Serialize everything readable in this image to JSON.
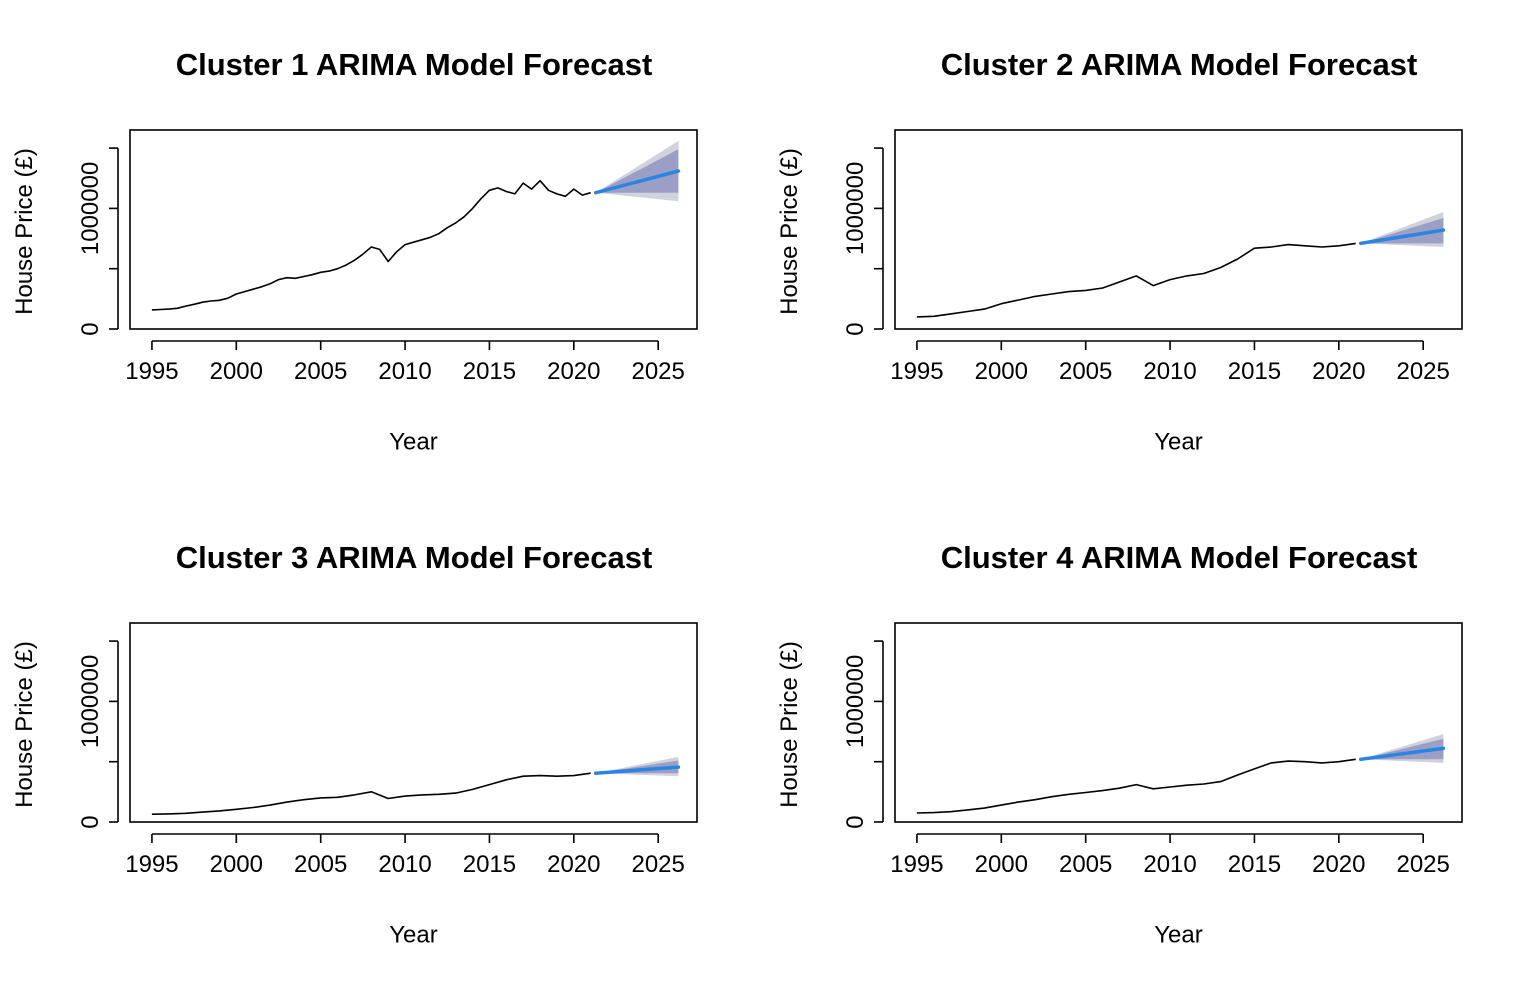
{
  "chart_data": [
    {
      "type": "line",
      "title": "Cluster 1 ARIMA Model Forecast",
      "xlabel": "Year",
      "ylabel": "House Price (£)",
      "xlim": [
        1993.7,
        2027.3
      ],
      "ylim": [
        0,
        1650000
      ],
      "xticks": [
        "1995",
        "2000",
        "2005",
        "2010",
        "2015",
        "2020",
        "2025"
      ],
      "yticks": [
        "0",
        "1000000"
      ],
      "grid": false,
      "series": [
        {
          "role": "observed",
          "color": "#000000",
          "x": [
            1995.0,
            1995.5,
            1996.0,
            1996.5,
            1997.0,
            1997.5,
            1998.0,
            1998.5,
            1999.0,
            1999.5,
            2000.0,
            2000.5,
            2001.0,
            2001.5,
            2002.0,
            2002.5,
            2003.0,
            2003.5,
            2004.0,
            2004.5,
            2005.0,
            2005.5,
            2006.0,
            2006.5,
            2007.0,
            2007.5,
            2008.0,
            2008.5,
            2009.0,
            2009.5,
            2010.0,
            2010.5,
            2011.0,
            2011.5,
            2012.0,
            2012.5,
            2013.0,
            2013.5,
            2014.0,
            2014.5,
            2015.0,
            2015.5,
            2016.0,
            2016.5,
            2017.0,
            2017.5,
            2018.0,
            2018.5,
            2019.0,
            2019.5,
            2020.0,
            2020.5,
            2021.0
          ],
          "y": [
            158000,
            162000,
            165000,
            172000,
            190000,
            205000,
            222000,
            232000,
            238000,
            255000,
            290000,
            310000,
            330000,
            350000,
            375000,
            410000,
            425000,
            420000,
            435000,
            450000,
            470000,
            480000,
            500000,
            530000,
            570000,
            620000,
            680000,
            660000,
            560000,
            640000,
            700000,
            720000,
            740000,
            760000,
            790000,
            840000,
            880000,
            930000,
            1000000,
            1080000,
            1150000,
            1170000,
            1140000,
            1120000,
            1210000,
            1160000,
            1230000,
            1150000,
            1120000,
            1100000,
            1160000,
            1110000,
            1130000
          ]
        },
        {
          "role": "forecast",
          "color": "#2a85e0",
          "x": [
            2021.3,
            2026.2
          ],
          "y": [
            1130000,
            1310000
          ],
          "pi80": {
            "lower": [
              1130000,
              1130000
            ],
            "upper": [
              1130000,
              1490000
            ]
          },
          "pi95": {
            "lower": [
              1130000,
              1060000
            ],
            "upper": [
              1130000,
              1560000
            ]
          }
        }
      ]
    },
    {
      "type": "line",
      "title": "Cluster 2 ARIMA Model Forecast",
      "xlabel": "Year",
      "ylabel": "House Price (£)",
      "xlim": [
        1993.7,
        2027.3
      ],
      "ylim": [
        0,
        1650000
      ],
      "xticks": [
        "1995",
        "2000",
        "2005",
        "2010",
        "2015",
        "2020",
        "2025"
      ],
      "yticks": [
        "0",
        "1000000"
      ],
      "grid": false,
      "series": [
        {
          "role": "observed",
          "color": "#000000",
          "x": [
            1995.0,
            1996.0,
            1997.0,
            1998.0,
            1999.0,
            2000.0,
            2001.0,
            2002.0,
            2003.0,
            2004.0,
            2005.0,
            2006.0,
            2007.0,
            2008.0,
            2009.0,
            2010.0,
            2011.0,
            2012.0,
            2013.0,
            2014.0,
            2015.0,
            2016.0,
            2017.0,
            2018.0,
            2019.0,
            2020.0,
            2021.0
          ],
          "y": [
            100000,
            105000,
            125000,
            145000,
            165000,
            210000,
            240000,
            270000,
            290000,
            310000,
            320000,
            340000,
            390000,
            440000,
            360000,
            410000,
            440000,
            460000,
            510000,
            580000,
            670000,
            680000,
            700000,
            690000,
            680000,
            690000,
            710000
          ]
        },
        {
          "role": "forecast",
          "color": "#2a85e0",
          "x": [
            2021.3,
            2026.2
          ],
          "y": [
            710000,
            820000
          ],
          "pi80": {
            "lower": [
              710000,
              710000
            ],
            "upper": [
              710000,
              920000
            ]
          },
          "pi95": {
            "lower": [
              710000,
              680000
            ],
            "upper": [
              710000,
              970000
            ]
          }
        }
      ]
    },
    {
      "type": "line",
      "title": "Cluster 3 ARIMA Model Forecast",
      "xlabel": "Year",
      "ylabel": "House Price (£)",
      "xlim": [
        1993.7,
        2027.3
      ],
      "ylim": [
        0,
        1650000
      ],
      "xticks": [
        "1995",
        "2000",
        "2005",
        "2010",
        "2015",
        "2020",
        "2025"
      ],
      "yticks": [
        "0",
        "1000000"
      ],
      "grid": false,
      "series": [
        {
          "role": "observed",
          "color": "#000000",
          "x": [
            1995.0,
            1996.0,
            1997.0,
            1998.0,
            1999.0,
            2000.0,
            2001.0,
            2002.0,
            2003.0,
            2004.0,
            2005.0,
            2006.0,
            2007.0,
            2008.0,
            2009.0,
            2010.0,
            2011.0,
            2012.0,
            2013.0,
            2014.0,
            2015.0,
            2016.0,
            2017.0,
            2018.0,
            2019.0,
            2020.0,
            2021.0
          ],
          "y": [
            65000,
            67000,
            72000,
            82000,
            92000,
            105000,
            120000,
            140000,
            165000,
            185000,
            200000,
            205000,
            225000,
            250000,
            195000,
            215000,
            225000,
            230000,
            240000,
            270000,
            310000,
            350000,
            380000,
            385000,
            380000,
            385000,
            405000
          ]
        },
        {
          "role": "forecast",
          "color": "#2a85e0",
          "x": [
            2021.3,
            2026.2
          ],
          "y": [
            405000,
            455000
          ],
          "pi80": {
            "lower": [
              405000,
              405000
            ],
            "upper": [
              405000,
              510000
            ]
          },
          "pi95": {
            "lower": [
              405000,
              380000
            ],
            "upper": [
              405000,
              540000
            ]
          }
        }
      ]
    },
    {
      "type": "line",
      "title": "Cluster 4 ARIMA Model Forecast",
      "xlabel": "Year",
      "ylabel": "House Price (£)",
      "xlim": [
        1993.7,
        2027.3
      ],
      "ylim": [
        0,
        1650000
      ],
      "xticks": [
        "1995",
        "2000",
        "2005",
        "2010",
        "2015",
        "2020",
        "2025"
      ],
      "yticks": [
        "0",
        "1000000"
      ],
      "grid": false,
      "series": [
        {
          "role": "observed",
          "color": "#000000",
          "x": [
            1995.0,
            1996.0,
            1997.0,
            1998.0,
            1999.0,
            2000.0,
            2001.0,
            2002.0,
            2003.0,
            2004.0,
            2005.0,
            2006.0,
            2007.0,
            2008.0,
            2009.0,
            2010.0,
            2011.0,
            2012.0,
            2013.0,
            2014.0,
            2015.0,
            2016.0,
            2017.0,
            2018.0,
            2019.0,
            2020.0,
            2021.0
          ],
          "y": [
            75000,
            78000,
            85000,
            100000,
            115000,
            140000,
            165000,
            185000,
            210000,
            230000,
            245000,
            260000,
            280000,
            310000,
            275000,
            290000,
            305000,
            315000,
            335000,
            390000,
            440000,
            490000,
            505000,
            500000,
            490000,
            500000,
            520000
          ]
        },
        {
          "role": "forecast",
          "color": "#2a85e0",
          "x": [
            2021.3,
            2026.2
          ],
          "y": [
            520000,
            610000
          ],
          "pi80": {
            "lower": [
              520000,
              520000
            ],
            "upper": [
              520000,
              690000
            ]
          },
          "pi95": {
            "lower": [
              520000,
              490000
            ],
            "upper": [
              520000,
              730000
            ]
          }
        }
      ]
    }
  ]
}
